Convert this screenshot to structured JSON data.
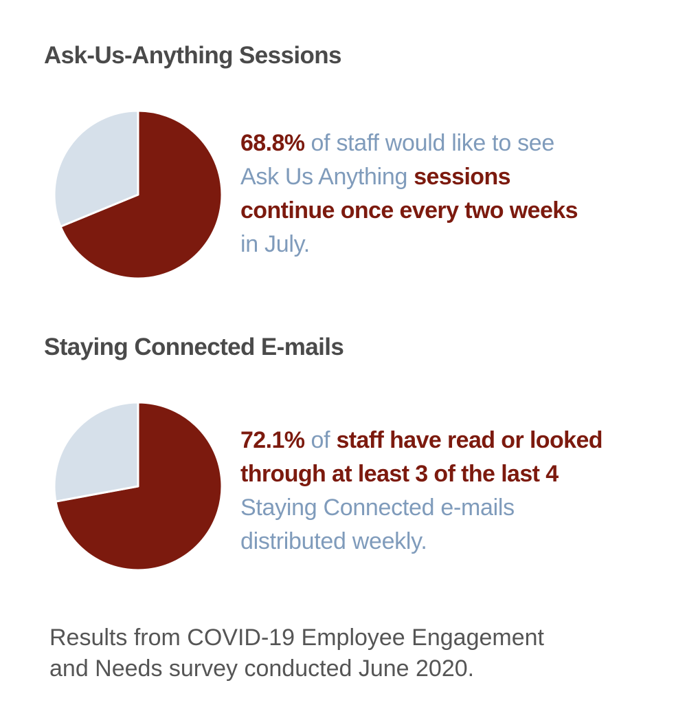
{
  "colors": {
    "accent": "#7c1a0e",
    "secondary_text": "#7f9bbb",
    "pie_remainder": "#d6e0ea",
    "title": "#4a4a4a",
    "footnote": "#555555"
  },
  "sections": [
    {
      "title": "Ask-Us-Anything Sessions",
      "stat_lines": [
        [
          {
            "text": "68.8%",
            "hl": true
          },
          {
            "text": " of staff would like to see",
            "hl": false
          }
        ],
        [
          {
            "text": "Ask Us Anything ",
            "hl": false
          },
          {
            "text": "sessions",
            "hl": true
          }
        ],
        [
          {
            "text": "continue once every two weeks",
            "hl": true
          }
        ],
        [
          {
            "text": "in July.",
            "hl": false
          }
        ]
      ]
    },
    {
      "title": "Staying Connected E-mails",
      "stat_lines": [
        [
          {
            "text": "72.1%",
            "hl": true
          },
          {
            "text": " of ",
            "hl": false
          },
          {
            "text": "staff have read or looked",
            "hl": true
          }
        ],
        [
          {
            "text": "through at least 3 of the last 4",
            "hl": true
          }
        ],
        [
          {
            "text": "Staying Connected e-mails",
            "hl": false
          }
        ],
        [
          {
            "text": "distributed weekly.",
            "hl": false
          }
        ]
      ]
    }
  ],
  "chart_data": [
    {
      "type": "pie",
      "values": [
        68.8,
        31.2
      ],
      "colors": [
        "#7c1a0e",
        "#d6e0ea"
      ]
    },
    {
      "type": "pie",
      "values": [
        72.1,
        27.9
      ],
      "colors": [
        "#7c1a0e",
        "#d6e0ea"
      ]
    }
  ],
  "footnote": {
    "lines": [
      "Results from COVID-19 Employee Engagement",
      "and Needs survey conducted June 2020."
    ]
  }
}
